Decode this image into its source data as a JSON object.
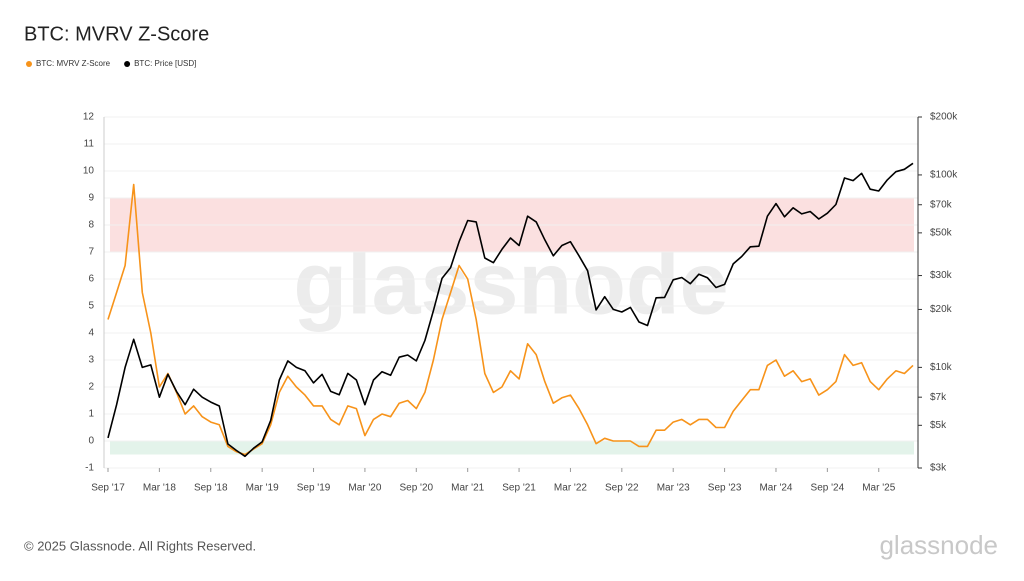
{
  "chart_data": {
    "type": "line",
    "title": "BTC: MVRV Z-Score",
    "watermark": "glassnode",
    "footer": "© 2025 Glassnode. All Rights Reserved.",
    "brand": "glassnode",
    "x": [
      "2017-09",
      "2017-10",
      "2017-11",
      "2017-12",
      "2018-01",
      "2018-02",
      "2018-03",
      "2018-04",
      "2018-05",
      "2018-06",
      "2018-07",
      "2018-08",
      "2018-09",
      "2018-10",
      "2018-11",
      "2018-12",
      "2019-01",
      "2019-02",
      "2019-03",
      "2019-04",
      "2019-05",
      "2019-06",
      "2019-07",
      "2019-08",
      "2019-09",
      "2019-10",
      "2019-11",
      "2019-12",
      "2020-01",
      "2020-02",
      "2020-03",
      "2020-04",
      "2020-05",
      "2020-06",
      "2020-07",
      "2020-08",
      "2020-09",
      "2020-10",
      "2020-11",
      "2020-12",
      "2021-01",
      "2021-02",
      "2021-03",
      "2021-04",
      "2021-05",
      "2021-06",
      "2021-07",
      "2021-08",
      "2021-09",
      "2021-10",
      "2021-11",
      "2021-12",
      "2022-01",
      "2022-02",
      "2022-03",
      "2022-04",
      "2022-05",
      "2022-06",
      "2022-07",
      "2022-08",
      "2022-09",
      "2022-10",
      "2022-11",
      "2022-12",
      "2023-01",
      "2023-02",
      "2023-03",
      "2023-04",
      "2023-05",
      "2023-06",
      "2023-07",
      "2023-08",
      "2023-09",
      "2023-10",
      "2023-11",
      "2023-12",
      "2024-01",
      "2024-02",
      "2024-03",
      "2024-04",
      "2024-05",
      "2024-06",
      "2024-07",
      "2024-08",
      "2024-09",
      "2024-10",
      "2024-11",
      "2024-12",
      "2025-01",
      "2025-02",
      "2025-03",
      "2025-04",
      "2025-05",
      "2025-06",
      "2025-07"
    ],
    "xticks": [
      {
        "value": "2017-09",
        "label": "Sep '17"
      },
      {
        "value": "2018-03",
        "label": "Mar '18"
      },
      {
        "value": "2018-09",
        "label": "Sep '18"
      },
      {
        "value": "2019-03",
        "label": "Mar '19"
      },
      {
        "value": "2019-09",
        "label": "Sep '19"
      },
      {
        "value": "2020-03",
        "label": "Mar '20"
      },
      {
        "value": "2020-09",
        "label": "Sep '20"
      },
      {
        "value": "2021-03",
        "label": "Mar '21"
      },
      {
        "value": "2021-09",
        "label": "Sep '21"
      },
      {
        "value": "2022-03",
        "label": "Mar '22"
      },
      {
        "value": "2022-09",
        "label": "Sep '22"
      },
      {
        "value": "2023-03",
        "label": "Mar '23"
      },
      {
        "value": "2023-09",
        "label": "Sep '23"
      },
      {
        "value": "2024-03",
        "label": "Mar '24"
      },
      {
        "value": "2024-09",
        "label": "Sep '24"
      },
      {
        "value": "2025-03",
        "label": "Mar '25"
      }
    ],
    "ylim": [
      -1,
      12
    ],
    "yticks": [
      -1,
      0,
      1,
      2,
      3,
      4,
      5,
      6,
      7,
      8,
      9,
      10,
      11,
      12
    ],
    "y2lim": [
      3000,
      200000
    ],
    "y2log": true,
    "y2ticks": [
      {
        "value": 3000,
        "label": "$3k"
      },
      {
        "value": 5000,
        "label": "$5k"
      },
      {
        "value": 7000,
        "label": "$7k"
      },
      {
        "value": 10000,
        "label": "$10k"
      },
      {
        "value": 20000,
        "label": "$20k"
      },
      {
        "value": 30000,
        "label": "$30k"
      },
      {
        "value": 50000,
        "label": "$50k"
      },
      {
        "value": 70000,
        "label": "$70k"
      },
      {
        "value": 100000,
        "label": "$100k"
      },
      {
        "value": 200000,
        "label": "$200k"
      }
    ],
    "bands": [
      {
        "from": 7,
        "to": 9,
        "color": "#fbe0e0"
      },
      {
        "from": -0.5,
        "to": 0,
        "color": "#e3f3ea"
      }
    ],
    "series": [
      {
        "name": "BTC: MVRV Z-Score",
        "color": "#f7931a",
        "axis": "y",
        "values": [
          4.5,
          5.5,
          6.5,
          9.5,
          5.5,
          4.0,
          2.0,
          2.5,
          1.8,
          1.0,
          1.3,
          0.9,
          0.7,
          0.6,
          -0.2,
          -0.4,
          -0.5,
          -0.3,
          -0.1,
          0.6,
          1.8,
          2.4,
          2.0,
          1.7,
          1.3,
          1.3,
          0.8,
          0.6,
          1.3,
          1.2,
          0.2,
          0.8,
          1.0,
          0.9,
          1.4,
          1.5,
          1.2,
          1.8,
          3.0,
          4.5,
          5.5,
          6.5,
          6.0,
          4.5,
          2.5,
          1.8,
          2.0,
          2.6,
          2.3,
          3.6,
          3.2,
          2.2,
          1.4,
          1.6,
          1.7,
          1.2,
          0.6,
          -0.1,
          0.1,
          0.0,
          0.0,
          0.0,
          -0.2,
          -0.2,
          0.4,
          0.4,
          0.7,
          0.8,
          0.6,
          0.8,
          0.8,
          0.5,
          0.5,
          1.1,
          1.5,
          1.9,
          1.9,
          2.8,
          3.0,
          2.4,
          2.6,
          2.2,
          2.3,
          1.7,
          1.9,
          2.2,
          3.2,
          2.8,
          2.9,
          2.2,
          1.9,
          2.3,
          2.6,
          2.5,
          2.8
        ]
      },
      {
        "name": "BTC: Price [USD]",
        "color": "#000000",
        "axis": "y2",
        "values": [
          4300,
          6400,
          10000,
          14000,
          10000,
          10300,
          7000,
          9200,
          7500,
          6400,
          7700,
          7000,
          6600,
          6300,
          4000,
          3700,
          3450,
          3800,
          4100,
          5300,
          8600,
          10800,
          10000,
          9600,
          8300,
          9200,
          7500,
          7200,
          9300,
          8600,
          6400,
          8600,
          9500,
          9100,
          11300,
          11600,
          10800,
          13800,
          19700,
          29000,
          33000,
          45000,
          58000,
          57000,
          37000,
          35000,
          41000,
          47000,
          43000,
          61000,
          57000,
          46000,
          38000,
          43000,
          45000,
          38000,
          31800,
          19900,
          23300,
          20000,
          19400,
          20500,
          17200,
          16500,
          23000,
          23100,
          28500,
          29300,
          27200,
          30500,
          29200,
          26000,
          27000,
          34500,
          37700,
          42300,
          42600,
          61000,
          71000,
          60600,
          67500,
          62700,
          64600,
          59000,
          63300,
          70200,
          96400,
          93400,
          102000,
          84300,
          82500,
          94200,
          104000,
          107000,
          115000
        ]
      }
    ]
  }
}
